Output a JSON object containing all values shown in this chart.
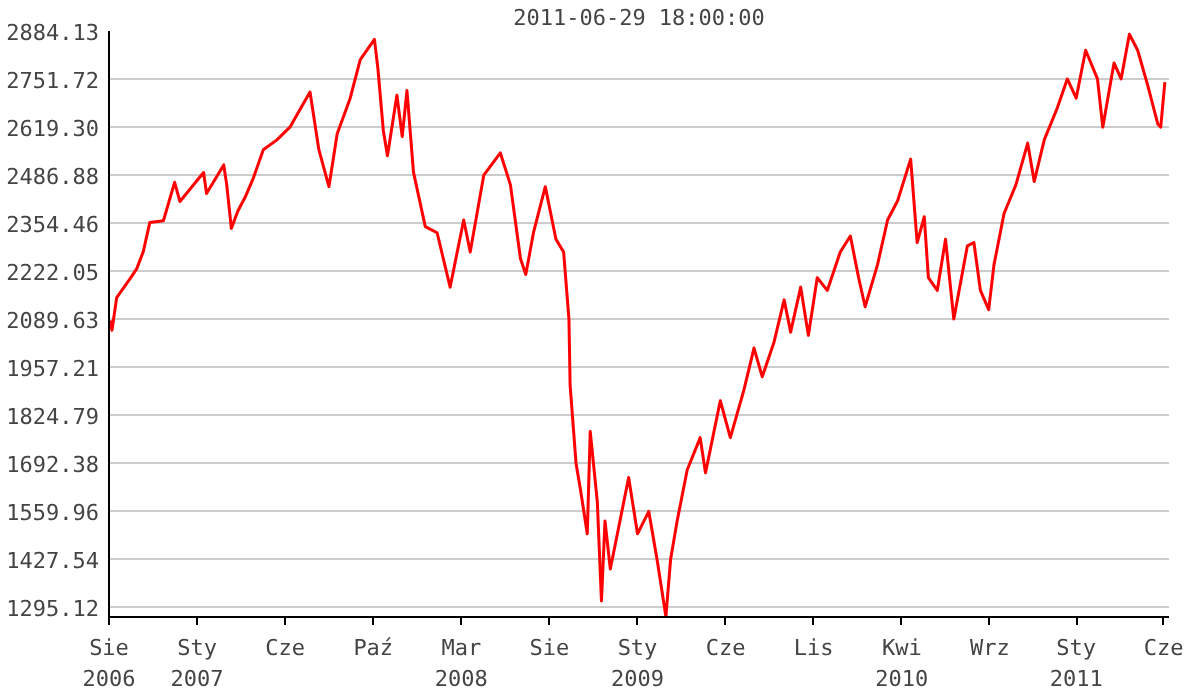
{
  "chart_data": {
    "type": "line",
    "title": "2011-06-29 18:00:00",
    "x": [
      "2006-08-10",
      "2006-08-13",
      "2006-08-21",
      "2006-09-13",
      "2006-09-24",
      "2006-10-05",
      "2006-10-16",
      "2006-11-08",
      "2006-11-27",
      "2006-12-06",
      "2007-01-15",
      "2007-01-20",
      "2007-02-18",
      "2007-02-23",
      "2007-03-03",
      "2007-03-14",
      "2007-03-26",
      "2007-04-09",
      "2007-04-26",
      "2007-05-19",
      "2007-06-10",
      "2007-07-14",
      "2007-07-29",
      "2007-08-15",
      "2007-08-29",
      "2007-09-20",
      "2007-10-07",
      "2007-10-31",
      "2007-11-06",
      "2007-11-15",
      "2007-11-22",
      "2007-12-08",
      "2007-12-17",
      "2007-12-25",
      "2008-01-05",
      "2008-01-25",
      "2008-02-14",
      "2008-03-07",
      "2008-03-30",
      "2008-04-10",
      "2008-05-03",
      "2008-05-31",
      "2008-06-17",
      "2008-07-04",
      "2008-07-13",
      "2008-07-26",
      "2008-08-15",
      "2008-09-02",
      "2008-09-15",
      "2008-09-24",
      "2008-09-26",
      "2008-10-06",
      "2008-10-13",
      "2008-10-25",
      "2008-10-30",
      "2008-11-11",
      "2008-11-18",
      "2008-11-24",
      "2008-12-03",
      "2009-01-03",
      "2009-01-18",
      "2009-02-06",
      "2009-02-20",
      "2009-03-07",
      "2009-03-15",
      "2009-03-26",
      "2009-04-12",
      "2009-05-04",
      "2009-05-13",
      "2009-06-07",
      "2009-06-24",
      "2009-07-17",
      "2009-08-03",
      "2009-08-17",
      "2009-09-06",
      "2009-09-23",
      "2009-10-04",
      "2009-10-21",
      "2009-11-03",
      "2009-11-18",
      "2009-12-05",
      "2009-12-27",
      "2010-01-13",
      "2010-01-27",
      "2010-02-07",
      "2010-02-28",
      "2010-03-17",
      "2010-04-03",
      "2010-04-25",
      "2010-05-06",
      "2010-05-18",
      "2010-05-25",
      "2010-06-09",
      "2010-06-23",
      "2010-07-07",
      "2010-07-30",
      "2010-08-10",
      "2010-08-21",
      "2010-09-04",
      "2010-09-13",
      "2010-09-30",
      "2010-10-20",
      "2010-11-09",
      "2010-11-20",
      "2010-12-07",
      "2010-12-29",
      "2011-01-15",
      "2011-01-30",
      "2011-02-15",
      "2011-03-07",
      "2011-03-16",
      "2011-04-04",
      "2011-04-16",
      "2011-04-30",
      "2011-05-14",
      "2011-05-31",
      "2011-06-17",
      "2011-06-22",
      "2011-06-29"
    ],
    "series": [
      {
        "color": "#ff0000",
        "values": [
          2086,
          2059,
          2149,
          2202,
          2229,
          2276,
          2356,
          2361,
          2467,
          2414,
          2494,
          2436,
          2515,
          2462,
          2340,
          2388,
          2425,
          2478,
          2557,
          2584,
          2619,
          2716,
          2557,
          2455,
          2601,
          2699,
          2805,
          2861,
          2778,
          2610,
          2540,
          2707,
          2593,
          2720,
          2495,
          2345,
          2328,
          2178,
          2363,
          2275,
          2487,
          2548,
          2460,
          2257,
          2213,
          2328,
          2455,
          2310,
          2275,
          2090,
          1907,
          1692,
          1625,
          1498,
          1780,
          1586,
          1313,
          1533,
          1401,
          1653,
          1498,
          1560,
          1428,
          1270,
          1428,
          1533,
          1674,
          1763,
          1666,
          1865,
          1763,
          1895,
          2010,
          1931,
          2027,
          2143,
          2054,
          2178,
          2045,
          2204,
          2169,
          2275,
          2319,
          2204,
          2124,
          2240,
          2363,
          2416,
          2531,
          2301,
          2372,
          2204,
          2169,
          2310,
          2090,
          2292,
          2301,
          2169,
          2116,
          2240,
          2381,
          2460,
          2575,
          2469,
          2584,
          2672,
          2752,
          2699,
          2831,
          2752,
          2619,
          2796,
          2752,
          2875,
          2831,
          2734,
          2628,
          2619,
          2743
        ]
      }
    ],
    "xlim": [
      "2006-08-08",
      "2011-07-06"
    ],
    "xticks": [
      {
        "value": "2006-08-08",
        "label": "Sie\n2006"
      },
      {
        "value": "2007-01-04",
        "label": "Sty\n2007"
      },
      {
        "value": "2007-06-02",
        "label": "Cze"
      },
      {
        "value": "2007-10-29",
        "label": "Paź"
      },
      {
        "value": "2008-03-26",
        "label": "Mar\n2008"
      },
      {
        "value": "2008-08-22",
        "label": "Sie"
      },
      {
        "value": "2009-01-18",
        "label": "Sty\n2009"
      },
      {
        "value": "2009-06-16",
        "label": "Cze"
      },
      {
        "value": "2009-11-12",
        "label": "Lis"
      },
      {
        "value": "2010-04-10",
        "label": "Kwi\n2010"
      },
      {
        "value": "2010-09-06",
        "label": "Wrz"
      },
      {
        "value": "2011-01-30",
        "label": "Sty\n2011"
      },
      {
        "value": "2011-06-27",
        "label": "Cze"
      }
    ],
    "ylim": [
      1268.64,
      2884.13
    ],
    "yticks": [
      1295.12,
      1427.54,
      1559.96,
      1692.38,
      1824.79,
      1957.21,
      2089.63,
      2222.05,
      2354.46,
      2486.88,
      {
        "value": 2619.3,
        "label": "2619.30"
      },
      2751.72,
      2884.13
    ],
    "grid": "y",
    "marker": "none",
    "line_style": "solid"
  }
}
